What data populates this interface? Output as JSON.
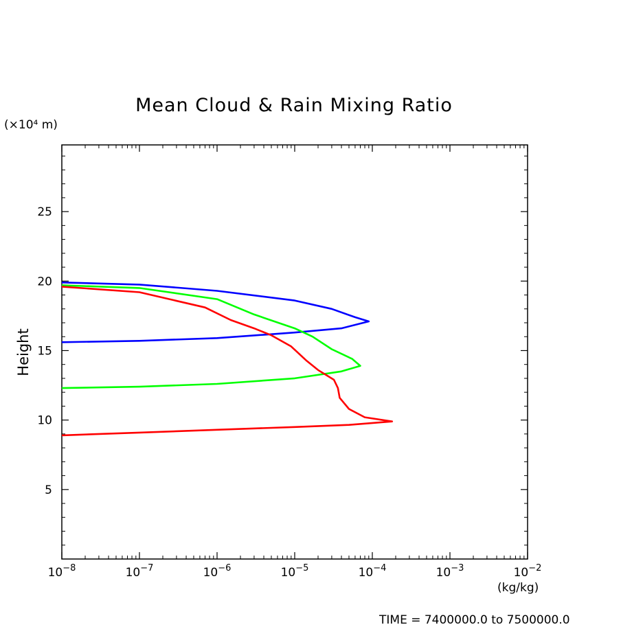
{
  "chart_data": {
    "type": "line",
    "title": "Mean Cloud & Rain Mixing Ratio",
    "ylabel": "Height",
    "yunit": "(×10⁴ m)",
    "xunit": "(kg/kg)",
    "xscale": "log",
    "xlim": [
      1e-08,
      0.01
    ],
    "ylim": [
      0,
      29.8
    ],
    "x_ticks": [
      {
        "value": 1e-08,
        "label": "10^-8"
      },
      {
        "value": 1e-07,
        "label": "10^-7"
      },
      {
        "value": 1e-06,
        "label": "10^-6"
      },
      {
        "value": 1e-05,
        "label": "10^-5"
      },
      {
        "value": 0.0001,
        "label": "10^-4"
      },
      {
        "value": 0.001,
        "label": "10^-3"
      },
      {
        "value": 0.01,
        "label": "10^-2"
      }
    ],
    "y_ticks": [
      5,
      10,
      15,
      20,
      25
    ],
    "grid": false,
    "legend": "none",
    "series": [
      {
        "color": "#0000ff",
        "points": [
          [
            1e-08,
            19.9
          ],
          [
            1e-07,
            19.75
          ],
          [
            1e-06,
            19.3
          ],
          [
            1e-05,
            18.6
          ],
          [
            3e-05,
            18.0
          ],
          [
            6e-05,
            17.4
          ],
          [
            9e-05,
            17.1
          ],
          [
            4e-05,
            16.6
          ],
          [
            1e-05,
            16.3
          ],
          [
            1e-06,
            15.9
          ],
          [
            1e-07,
            15.7
          ],
          [
            1e-08,
            15.6
          ]
        ]
      },
      {
        "color": "#00ff00",
        "points": [
          [
            1e-08,
            19.7
          ],
          [
            1e-07,
            19.5
          ],
          [
            1e-06,
            18.7
          ],
          [
            3e-06,
            17.6
          ],
          [
            1e-05,
            16.6
          ],
          [
            1.7e-05,
            16.0
          ],
          [
            3e-05,
            15.1
          ],
          [
            5.5e-05,
            14.4
          ],
          [
            7e-05,
            13.9
          ],
          [
            4e-05,
            13.5
          ],
          [
            1e-05,
            13.0
          ],
          [
            1e-06,
            12.6
          ],
          [
            1e-07,
            12.4
          ],
          [
            1e-08,
            12.3
          ]
        ]
      },
      {
        "color": "#ff0000",
        "points": [
          [
            1e-08,
            19.6
          ],
          [
            1e-07,
            19.2
          ],
          [
            7e-07,
            18.1
          ],
          [
            1.5e-06,
            17.2
          ],
          [
            3e-06,
            16.6
          ],
          [
            5e-06,
            16.1
          ],
          [
            9e-06,
            15.3
          ],
          [
            1.4e-05,
            14.3
          ],
          [
            2e-05,
            13.6
          ],
          [
            3.2e-05,
            12.9
          ],
          [
            3.6e-05,
            12.3
          ],
          [
            3.8e-05,
            11.6
          ],
          [
            5e-05,
            10.8
          ],
          [
            8e-05,
            10.2
          ],
          [
            0.00018,
            9.9
          ],
          [
            5e-05,
            9.65
          ],
          [
            1e-05,
            9.5
          ],
          [
            1e-06,
            9.3
          ],
          [
            1e-07,
            9.1
          ],
          [
            1e-08,
            8.9
          ]
        ]
      }
    ]
  },
  "footer": "TIME = 7400000.0 to 7500000.0"
}
